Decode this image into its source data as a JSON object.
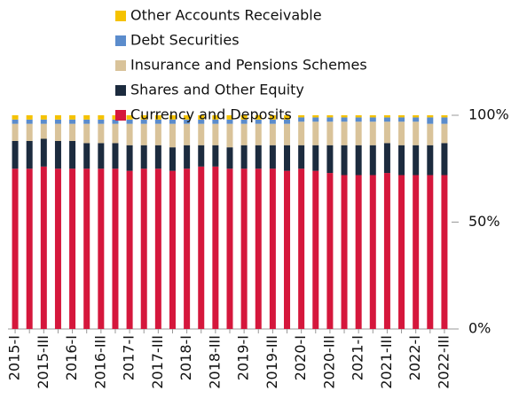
{
  "chart_data": {
    "type": "stacked_bar",
    "categories": [
      "2015-I",
      null,
      "2015-III",
      null,
      "2016-I",
      null,
      "2016-III",
      null,
      "2017-I",
      null,
      "2017-III",
      null,
      "2018-I",
      null,
      "2018-III",
      null,
      "2019-I",
      null,
      "2019-III",
      null,
      "2020-I",
      null,
      "2020-III",
      null,
      "2021-I",
      null,
      "2021-III",
      null,
      "2022-I",
      null,
      "2022-III"
    ],
    "series": [
      {
        "name": "Currency and Deposits",
        "color": "#d5173c",
        "values": [
          75,
          75,
          76,
          75,
          75,
          75,
          75,
          75,
          74,
          75,
          75,
          74,
          75,
          76,
          76,
          75,
          75,
          75,
          75,
          74,
          75,
          74,
          73,
          72,
          72,
          72,
          73,
          72,
          72,
          72,
          72
        ]
      },
      {
        "name": "Shares and Other Equity",
        "color": "#1c2b3e",
        "values": [
          13,
          13,
          13,
          13,
          13,
          12,
          12,
          12,
          12,
          11,
          11,
          11,
          11,
          10,
          10,
          10,
          11,
          11,
          11,
          12,
          11,
          12,
          13,
          14,
          14,
          14,
          14,
          14,
          14,
          14,
          15
        ]
      },
      {
        "name": "Insurance and Pensions Schemes",
        "color": "#d9c39a",
        "values": [
          8,
          8,
          7,
          8,
          8,
          9,
          9,
          9,
          10,
          10,
          10,
          11,
          10,
          10,
          10,
          11,
          10,
          10,
          10,
          10,
          11,
          11,
          11,
          11,
          11,
          11,
          10,
          11,
          11,
          10,
          9
        ]
      },
      {
        "name": "Debt Securities",
        "color": "#5b8ccc",
        "values": [
          2,
          2,
          2,
          2,
          2,
          2,
          2,
          2,
          2,
          2,
          2,
          2,
          2,
          2,
          2,
          2,
          2,
          2,
          2,
          2,
          2,
          2,
          2,
          2,
          2,
          2,
          2,
          2,
          2,
          3,
          3
        ]
      },
      {
        "name": "Other Accounts Receivable",
        "color": "#f5c200",
        "values": [
          2,
          2,
          2,
          2,
          2,
          2,
          2,
          2,
          2,
          2,
          2,
          2,
          2,
          2,
          2,
          2,
          2,
          2,
          2,
          2,
          1,
          1,
          1,
          1,
          1,
          1,
          1,
          1,
          1,
          1,
          1
        ]
      }
    ],
    "ylim": [
      0,
      100
    ],
    "yticks": [
      {
        "value": 0,
        "label": "0%"
      },
      {
        "value": 50,
        "label": "50%"
      },
      {
        "value": 100,
        "label": "100%"
      }
    ],
    "legend": "top"
  }
}
